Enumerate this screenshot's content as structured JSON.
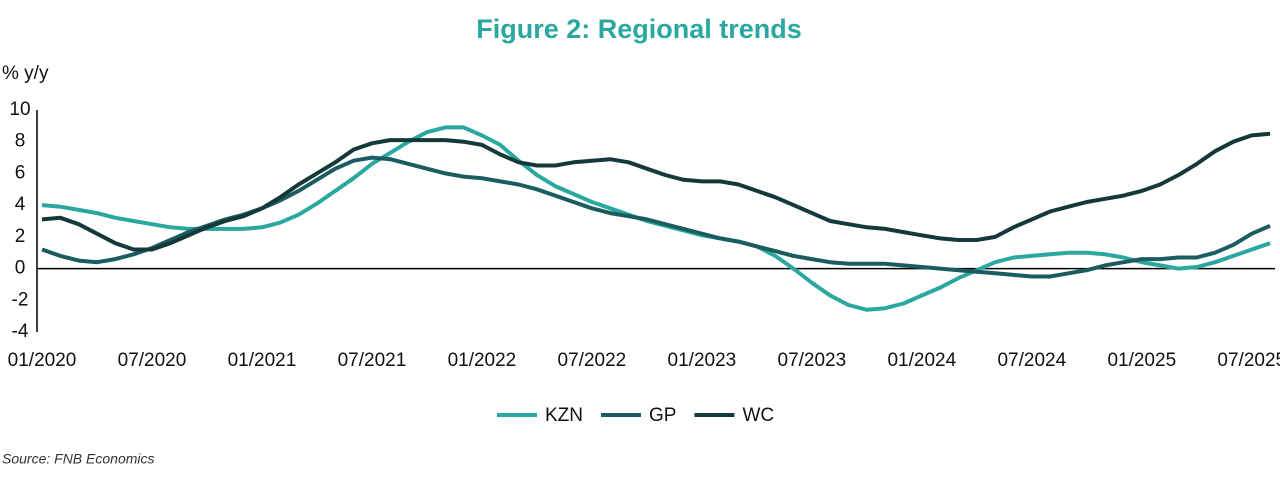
{
  "chart_data": {
    "type": "line",
    "title": "Figure 2: Regional trends",
    "y_label": "% y/y",
    "source": "Source: FNB Economics",
    "categories": [
      "01/2020",
      null,
      null,
      null,
      null,
      null,
      "07/2020",
      null,
      null,
      null,
      null,
      null,
      "01/2021",
      null,
      null,
      null,
      null,
      null,
      "07/2021",
      null,
      null,
      null,
      null,
      null,
      "01/2022",
      null,
      null,
      null,
      null,
      null,
      "07/2022",
      null,
      null,
      null,
      null,
      null,
      "01/2023",
      null,
      null,
      null,
      null,
      null,
      "07/2023",
      null,
      null,
      null,
      null,
      null,
      "01/2024",
      null,
      null,
      null,
      null,
      null,
      "07/2024",
      null,
      null,
      null,
      null,
      null,
      "01/2025",
      null,
      null,
      null,
      null,
      null,
      "07/2025",
      null
    ],
    "series": [
      {
        "name": "KZN",
        "color": "#2aa8a0",
        "values": [
          4.0,
          3.9,
          3.7,
          3.5,
          3.2,
          3.0,
          2.8,
          2.6,
          2.5,
          2.5,
          2.5,
          2.5,
          2.6,
          2.9,
          3.4,
          4.1,
          4.9,
          5.7,
          6.6,
          7.3,
          8.0,
          8.6,
          8.9,
          8.9,
          8.4,
          7.8,
          6.8,
          5.9,
          5.2,
          4.7,
          4.2,
          3.8,
          3.4,
          3.0,
          2.7,
          2.4,
          2.1,
          1.9,
          1.7,
          1.4,
          0.8,
          0.0,
          -0.9,
          -1.7,
          -2.3,
          -2.6,
          -2.5,
          -2.2,
          -1.7,
          -1.2,
          -0.6,
          -0.1,
          0.4,
          0.7,
          0.8,
          0.9,
          1.0,
          1.0,
          0.9,
          0.7,
          0.4,
          0.2,
          0.0,
          0.1,
          0.4,
          0.8,
          1.2,
          1.6
        ]
      },
      {
        "name": "GP",
        "color": "#1b5c60",
        "values": [
          1.2,
          0.8,
          0.5,
          0.4,
          0.6,
          0.9,
          1.3,
          1.8,
          2.3,
          2.7,
          3.1,
          3.4,
          3.8,
          4.3,
          4.9,
          5.6,
          6.3,
          6.8,
          7.0,
          6.9,
          6.6,
          6.3,
          6.0,
          5.8,
          5.7,
          5.5,
          5.3,
          5.0,
          4.6,
          4.2,
          3.8,
          3.5,
          3.3,
          3.1,
          2.8,
          2.5,
          2.2,
          1.9,
          1.7,
          1.4,
          1.1,
          0.8,
          0.6,
          0.4,
          0.3,
          0.3,
          0.3,
          0.2,
          0.1,
          0.0,
          -0.1,
          -0.2,
          -0.3,
          -0.4,
          -0.5,
          -0.5,
          -0.3,
          -0.1,
          0.2,
          0.4,
          0.6,
          0.6,
          0.7,
          0.7,
          1.0,
          1.5,
          2.2,
          2.7
        ]
      },
      {
        "name": "WC",
        "color": "#15393b",
        "values": [
          3.1,
          3.2,
          2.8,
          2.2,
          1.6,
          1.2,
          1.2,
          1.6,
          2.1,
          2.6,
          3.0,
          3.3,
          3.8,
          4.5,
          5.3,
          6.0,
          6.7,
          7.5,
          7.9,
          8.1,
          8.1,
          8.1,
          8.1,
          8.0,
          7.8,
          7.2,
          6.7,
          6.5,
          6.5,
          6.7,
          6.8,
          6.9,
          6.7,
          6.3,
          5.9,
          5.6,
          5.5,
          5.5,
          5.3,
          4.9,
          4.5,
          4.0,
          3.5,
          3.0,
          2.8,
          2.6,
          2.5,
          2.3,
          2.1,
          1.9,
          1.8,
          1.8,
          2.0,
          2.6,
          3.1,
          3.6,
          3.9,
          4.2,
          4.4,
          4.6,
          4.9,
          5.3,
          5.9,
          6.6,
          7.4,
          8.0,
          8.4,
          8.5
        ]
      }
    ],
    "ylim": [
      -4,
      10
    ],
    "yticks": [
      10,
      8,
      6,
      4,
      2,
      0,
      -2,
      -4
    ],
    "grid": false,
    "legend": "bottom"
  }
}
